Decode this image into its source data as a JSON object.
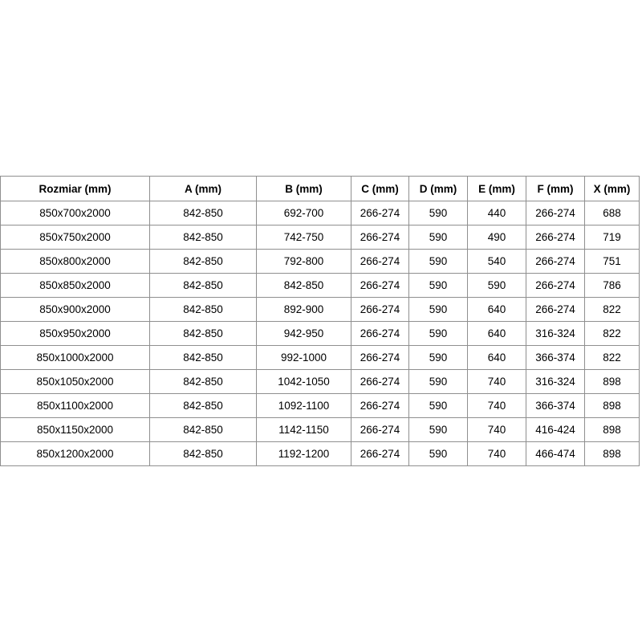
{
  "table": {
    "columns": [
      "Rozmiar (mm)",
      "A (mm)",
      "B (mm)",
      "C (mm)",
      "D (mm)",
      "E (mm)",
      "F (mm)",
      "X (mm)"
    ],
    "rows": [
      [
        "850x700x2000",
        "842-850",
        "692-700",
        "266-274",
        "590",
        "440",
        "266-274",
        "688"
      ],
      [
        "850x750x2000",
        "842-850",
        "742-750",
        "266-274",
        "590",
        "490",
        "266-274",
        "719"
      ],
      [
        "850x800x2000",
        "842-850",
        "792-800",
        "266-274",
        "590",
        "540",
        "266-274",
        "751"
      ],
      [
        "850x850x2000",
        "842-850",
        "842-850",
        "266-274",
        "590",
        "590",
        "266-274",
        "786"
      ],
      [
        "850x900x2000",
        "842-850",
        "892-900",
        "266-274",
        "590",
        "640",
        "266-274",
        "822"
      ],
      [
        "850x950x2000",
        "842-850",
        "942-950",
        "266-274",
        "590",
        "640",
        "316-324",
        "822"
      ],
      [
        "850x1000x2000",
        "842-850",
        "992-1000",
        "266-274",
        "590",
        "640",
        "366-374",
        "822"
      ],
      [
        "850x1050x2000",
        "842-850",
        "1042-1050",
        "266-274",
        "590",
        "740",
        "316-324",
        "898"
      ],
      [
        "850x1100x2000",
        "842-850",
        "1092-1100",
        "266-274",
        "590",
        "740",
        "366-374",
        "898"
      ],
      [
        "850x1150x2000",
        "842-850",
        "1142-1150",
        "266-274",
        "590",
        "740",
        "416-424",
        "898"
      ],
      [
        "850x1200x2000",
        "842-850",
        "1192-1200",
        "266-274",
        "590",
        "740",
        "466-474",
        "898"
      ]
    ]
  },
  "colors": {
    "background": "#ffffff",
    "border": "#8f8f8f",
    "text": "#000000"
  },
  "chart_data": {
    "type": "table",
    "title": "",
    "columns": [
      "Rozmiar (mm)",
      "A (mm)",
      "B (mm)",
      "C (mm)",
      "D (mm)",
      "E (mm)",
      "F (mm)",
      "X (mm)"
    ],
    "rows": [
      [
        "850x700x2000",
        "842-850",
        "692-700",
        "266-274",
        "590",
        "440",
        "266-274",
        "688"
      ],
      [
        "850x750x2000",
        "842-850",
        "742-750",
        "266-274",
        "590",
        "490",
        "266-274",
        "719"
      ],
      [
        "850x800x2000",
        "842-850",
        "792-800",
        "266-274",
        "590",
        "540",
        "266-274",
        "751"
      ],
      [
        "850x850x2000",
        "842-850",
        "842-850",
        "266-274",
        "590",
        "590",
        "266-274",
        "786"
      ],
      [
        "850x900x2000",
        "842-850",
        "892-900",
        "266-274",
        "590",
        "640",
        "266-274",
        "822"
      ],
      [
        "850x950x2000",
        "842-850",
        "942-950",
        "266-274",
        "590",
        "640",
        "316-324",
        "822"
      ],
      [
        "850x1000x2000",
        "842-850",
        "992-1000",
        "266-274",
        "590",
        "640",
        "366-374",
        "822"
      ],
      [
        "850x1050x2000",
        "842-850",
        "1042-1050",
        "266-274",
        "590",
        "740",
        "316-324",
        "898"
      ],
      [
        "850x1100x2000",
        "842-850",
        "1092-1100",
        "266-274",
        "590",
        "740",
        "366-374",
        "898"
      ],
      [
        "850x1150x2000",
        "842-850",
        "1142-1150",
        "266-274",
        "590",
        "740",
        "416-424",
        "898"
      ],
      [
        "850x1200x2000",
        "842-850",
        "1192-1200",
        "266-274",
        "590",
        "740",
        "466-474",
        "898"
      ]
    ]
  }
}
